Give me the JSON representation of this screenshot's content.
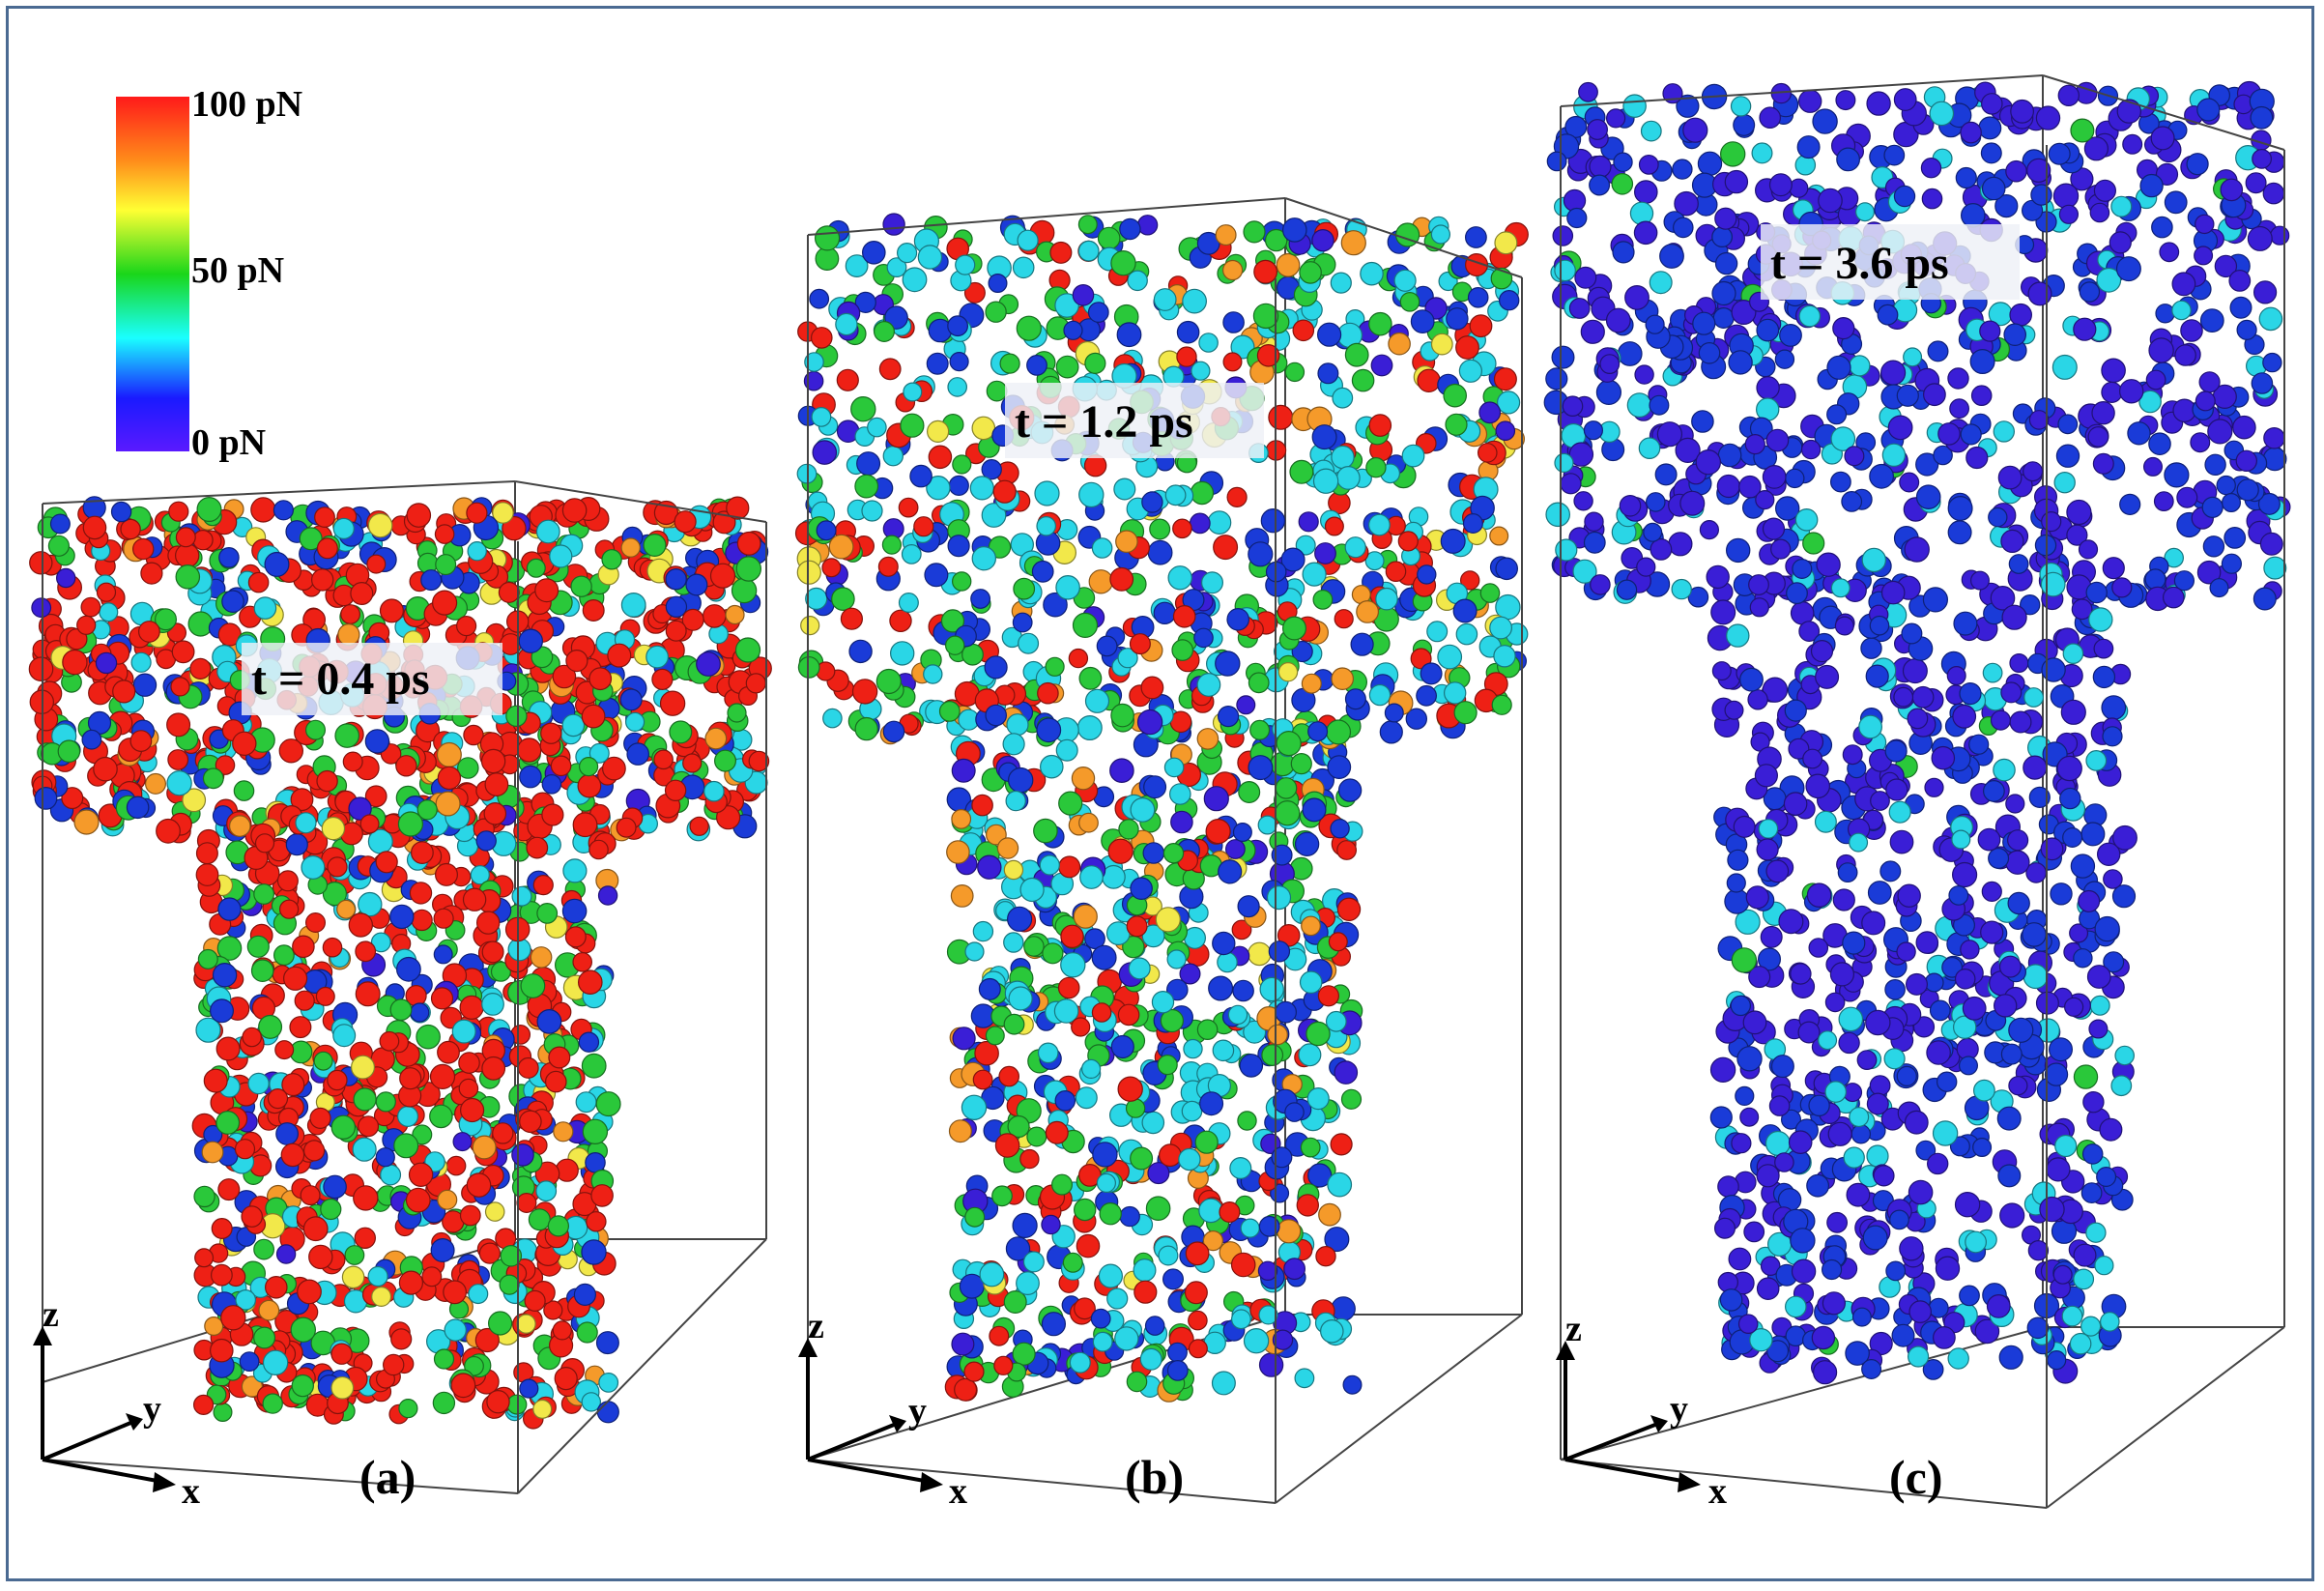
{
  "colorbar": {
    "max_label": "100 pN",
    "mid_label": "50 pN",
    "min_label": "0 pN",
    "stops": [
      "#ff1a1a",
      "#ff8c1a",
      "#ffff33",
      "#1ad61a",
      "#1affff",
      "#1a1aff",
      "#5a1aff"
    ]
  },
  "palette": {
    "red": "#ee2015",
    "orange": "#f59a2a",
    "yellow": "#f2e84a",
    "green": "#2ac83a",
    "cyan": "#2ad6e6",
    "blue": "#1a3bd8",
    "violet": "#3a1ed6"
  },
  "panels": [
    {
      "label": "(a)",
      "time": "t = 0.4 ps",
      "weights": {
        "red": 0.48,
        "orange": 0.04,
        "yellow": 0.04,
        "green": 0.18,
        "cyan": 0.12,
        "blue": 0.12,
        "violet": 0.02
      }
    },
    {
      "label": "(b)",
      "time": "t = 1.2 ps",
      "weights": {
        "red": 0.15,
        "orange": 0.05,
        "yellow": 0.03,
        "green": 0.22,
        "cyan": 0.28,
        "blue": 0.22,
        "violet": 0.05
      }
    },
    {
      "label": "(c)",
      "time": "t = 3.6 ps",
      "weights": {
        "red": 0.0,
        "orange": 0.0,
        "yellow": 0.0,
        "green": 0.01,
        "cyan": 0.14,
        "blue": 0.35,
        "violet": 0.5
      }
    }
  ],
  "axes": {
    "z": "z",
    "y": "y",
    "x": "x"
  }
}
